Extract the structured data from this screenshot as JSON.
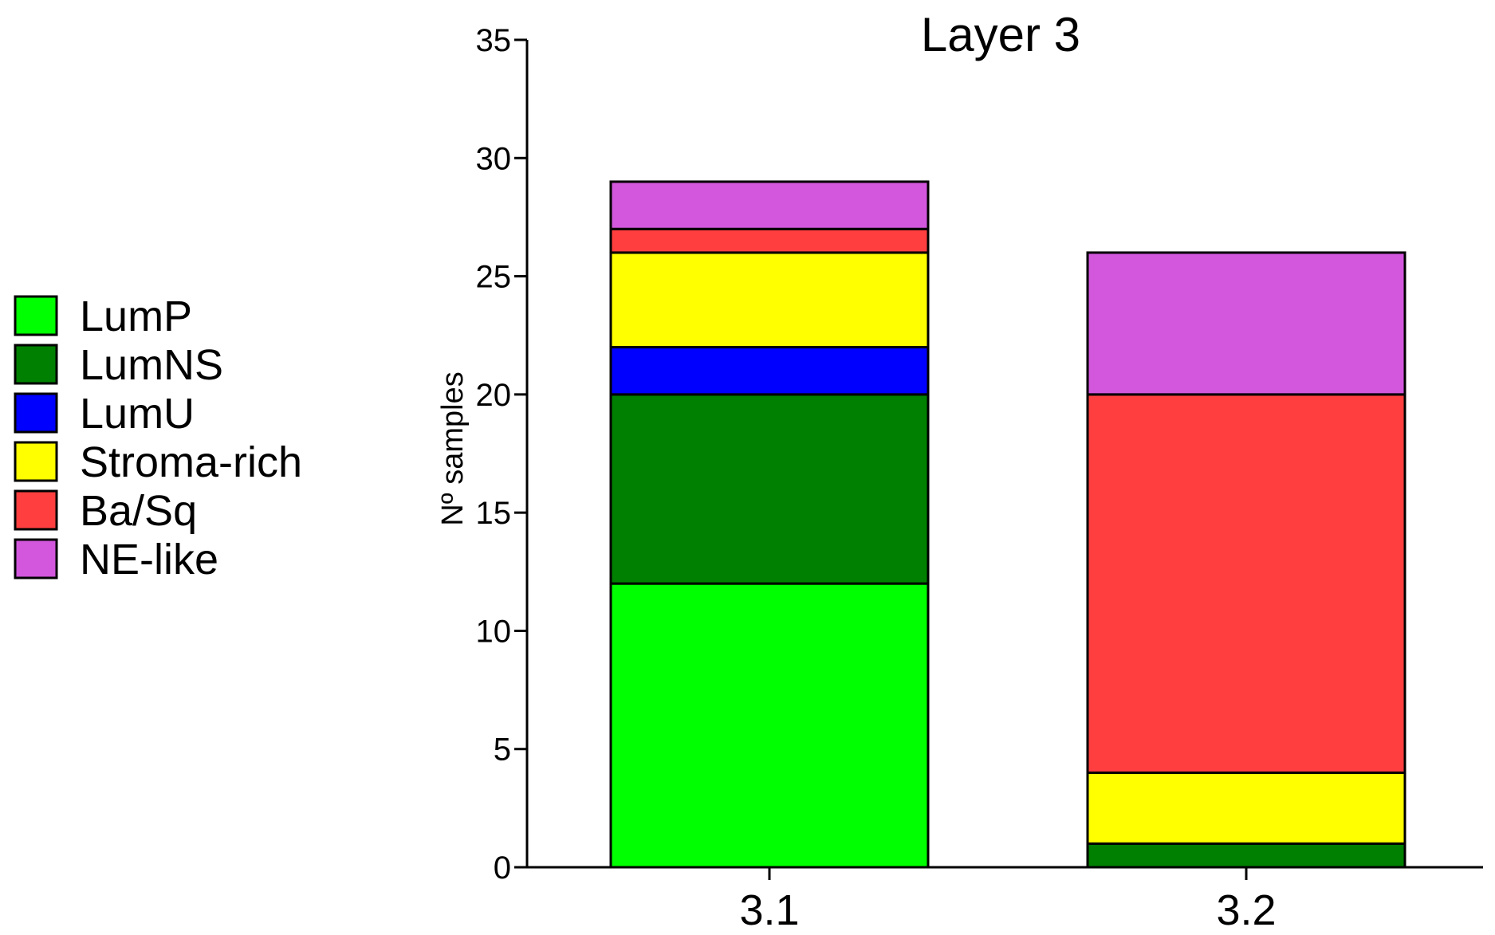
{
  "chart_data": {
    "type": "bar",
    "stacked": true,
    "title": "Layer 3",
    "xlabel": "",
    "ylabel": "Nº samples",
    "ylim": [
      0,
      35
    ],
    "yticks": [
      0,
      5,
      10,
      15,
      20,
      25,
      30,
      35
    ],
    "categories": [
      "3.1",
      "3.2"
    ],
    "series": [
      {
        "name": "LumP",
        "color": "#00ff00",
        "values": [
          12,
          0
        ]
      },
      {
        "name": "LumNS",
        "color": "#008000",
        "values": [
          8,
          1
        ]
      },
      {
        "name": "LumU",
        "color": "#0000ff",
        "values": [
          2,
          0
        ]
      },
      {
        "name": "Stroma-rich",
        "color": "#ffff00",
        "values": [
          4,
          3
        ]
      },
      {
        "name": "Ba/Sq",
        "color": "#ff3f3f",
        "values": [
          1,
          16
        ]
      },
      {
        "name": "NE-like",
        "color": "#d257dd",
        "values": [
          2,
          6
        ]
      }
    ],
    "grid": false,
    "legend_position": "left"
  }
}
